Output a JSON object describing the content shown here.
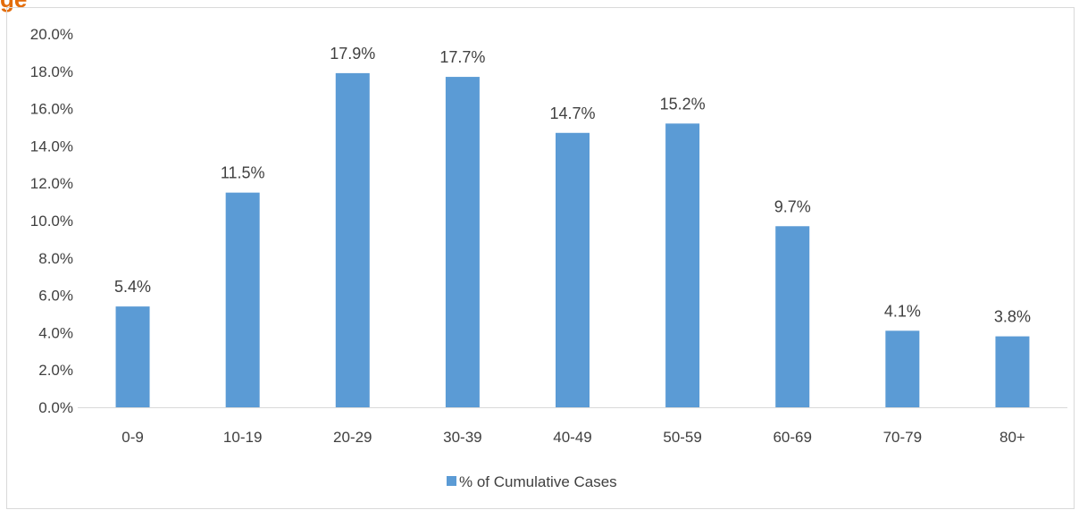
{
  "heading_fragment": "ge",
  "chart_data": {
    "type": "bar",
    "categories": [
      "0-9",
      "10-19",
      "20-29",
      "30-39",
      "40-49",
      "50-59",
      "60-69",
      "70-79",
      "80+"
    ],
    "series": [
      {
        "name": "% of Cumulative Cases",
        "values": [
          5.4,
          11.5,
          17.9,
          17.7,
          14.7,
          15.2,
          9.7,
          4.1,
          3.8
        ],
        "color": "#5b9bd5"
      }
    ],
    "data_labels": [
      "5.4%",
      "11.5%",
      "17.9%",
      "17.7%",
      "14.7%",
      "15.2%",
      "9.7%",
      "4.1%",
      "3.8%"
    ],
    "yticks": [
      0,
      2,
      4,
      6,
      8,
      10,
      12,
      14,
      16,
      18,
      20
    ],
    "ytick_labels": [
      "0.0%",
      "2.0%",
      "4.0%",
      "6.0%",
      "8.0%",
      "10.0%",
      "12.0%",
      "14.0%",
      "16.0%",
      "18.0%",
      "20.0%"
    ],
    "ylim": [
      0,
      20
    ],
    "grid": false,
    "legend_position": "bottom",
    "title": "",
    "xlabel": "",
    "ylabel": ""
  }
}
